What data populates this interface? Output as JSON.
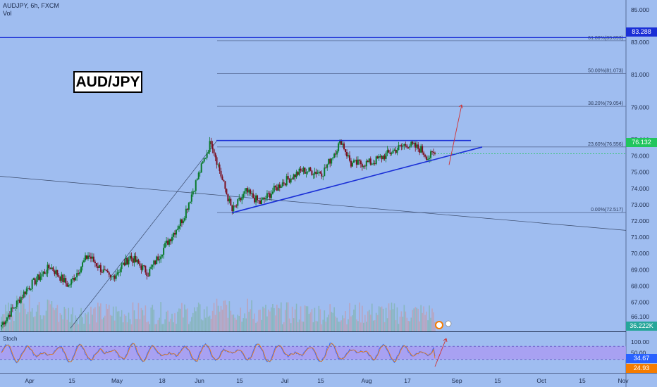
{
  "header": {
    "symbol_line": "AUDJPY, 6h, FXCM",
    "volume_label": "Vol"
  },
  "chart_label": "AUD/JPY",
  "stoch_label": "Stoch",
  "colors": {
    "background": "#9fbdf0",
    "up": "#0a7a2b",
    "down": "#7a1020",
    "trend": "#1a2fd6",
    "fib": "#5a6e9a",
    "stoch_band": "#a99cf2"
  },
  "price_tags": {
    "resistance": {
      "value": "83.288",
      "color": "#1a2fd6"
    },
    "last": {
      "value": "76.132",
      "color": "#22c55e"
    },
    "volume": {
      "value": "36.222K",
      "color": "#26a69a"
    },
    "stoch_k": {
      "value": "34.67",
      "color": "#2962ff"
    },
    "stoch_d": {
      "value": "24.93",
      "color": "#f57c00"
    }
  },
  "chart_data": {
    "type": "candlestick",
    "symbol": "AUDJPY",
    "timeframe": "6h",
    "source": "FXCM",
    "ylim": [
      65.2,
      85.6
    ],
    "y_ticks": [
      "85.000",
      "83.000",
      "81.000",
      "79.000",
      "77.000",
      "76.000",
      "75.000",
      "74.000",
      "73.000",
      "72.000",
      "71.000",
      "70.000",
      "69.000",
      "68.000",
      "67.000",
      "66.100"
    ],
    "x_ticks": [
      "Apr",
      "15",
      "May",
      "18",
      "Jun",
      "15",
      "Jul",
      "15",
      "Aug",
      "17",
      "Sep",
      "15",
      "Oct",
      "15",
      "Nov"
    ],
    "stoch_ticks": [
      "100.00",
      "50.00"
    ],
    "fib_levels": [
      {
        "label": "61.80%(83.093)",
        "value": 83.093
      },
      {
        "label": "50.00%(81.073)",
        "value": 81.073
      },
      {
        "label": "38.20%(79.054)",
        "value": 79.054
      },
      {
        "label": "23.60%(76.556)",
        "value": 76.556
      },
      {
        "label": "0.00%(72.517)",
        "value": 72.517
      }
    ],
    "resistance_level": 83.288,
    "triangle_top": 76.95,
    "last_price": 76.132,
    "price_anchors": [
      [
        0,
        65.6
      ],
      [
        18,
        67.8
      ],
      [
        35,
        69.2
      ],
      [
        48,
        68.0
      ],
      [
        62,
        69.9
      ],
      [
        78,
        68.4
      ],
      [
        92,
        69.8
      ],
      [
        105,
        68.8
      ],
      [
        118,
        70.6
      ],
      [
        130,
        72.2
      ],
      [
        140,
        74.6
      ],
      [
        150,
        76.95
      ],
      [
        158,
        74.5
      ],
      [
        165,
        72.6
      ],
      [
        175,
        73.8
      ],
      [
        185,
        73.1
      ],
      [
        200,
        74.3
      ],
      [
        215,
        75.1
      ],
      [
        230,
        75.0
      ],
      [
        243,
        76.95
      ],
      [
        250,
        75.5
      ],
      [
        265,
        75.6
      ],
      [
        280,
        76.3
      ],
      [
        290,
        76.75
      ],
      [
        300,
        76.4
      ],
      [
        305,
        75.9
      ],
      [
        310,
        76.2
      ]
    ],
    "candle_count": 311,
    "volume_label": "36.222K",
    "stoch_k": 34.67,
    "stoch_d": 24.93
  }
}
